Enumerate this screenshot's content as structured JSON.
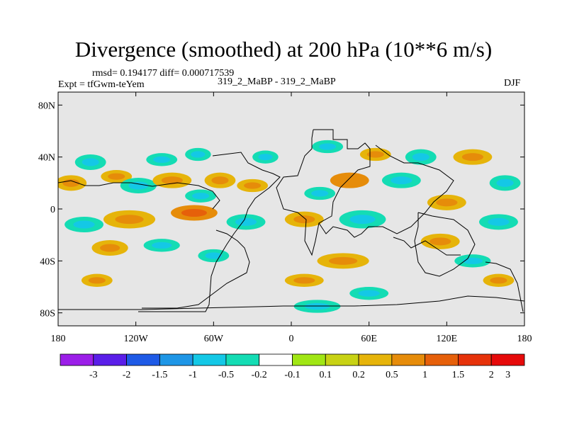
{
  "header": {
    "title": "Divergence (smoothed) at 200 hPa (10**6 m/s)",
    "stats": "rmsd= 0.194177 diff= 0.000717539",
    "experiment": "Expt = tfGwm-teYem",
    "comparison": "319_2_MaBP - 319_2_MaBP",
    "season": "DJF"
  },
  "chart_data": {
    "type": "heatmap",
    "title": "Divergence (smoothed) at 200 hPa (10**6 m/s)",
    "xlabel": "",
    "ylabel": "",
    "xlim": [
      -180,
      180
    ],
    "ylim": [
      -90,
      90
    ],
    "x_ticks": [
      {
        "value": -180,
        "label": "180"
      },
      {
        "value": -120,
        "label": "120W"
      },
      {
        "value": -60,
        "label": "60W"
      },
      {
        "value": 0,
        "label": "0"
      },
      {
        "value": 60,
        "label": "60E"
      },
      {
        "value": 120,
        "label": "120E"
      },
      {
        "value": 180,
        "label": "180"
      }
    ],
    "y_ticks": [
      {
        "value": 80,
        "label": "80N"
      },
      {
        "value": 40,
        "label": "40N"
      },
      {
        "value": 0,
        "label": "0"
      },
      {
        "value": -40,
        "label": "40S"
      },
      {
        "value": -80,
        "label": "80S"
      }
    ],
    "background_color": "#e6e6e6",
    "colorbar": {
      "placement": "bottom",
      "colors": [
        "#9b1ee8",
        "#5a1ee8",
        "#1e5ae6",
        "#1e96e6",
        "#14c8e6",
        "#14dcb4",
        "#ffffff",
        "#a0e614",
        "#c8d214",
        "#e6b40a",
        "#e68c0a",
        "#e6600a",
        "#e6320a",
        "#e60a0a"
      ],
      "labels": [
        "-3",
        "-2",
        "-1.5",
        "-1",
        "-0.5",
        "-0.2",
        "-0.1",
        "0.1",
        "0.2",
        "0.5",
        "1",
        "1.5",
        "2",
        "3"
      ]
    },
    "field_patches": [
      {
        "lon": -170,
        "lat": 20,
        "rx": 12,
        "ry": 6,
        "value": 0.4
      },
      {
        "lon": -155,
        "lat": 36,
        "rx": 12,
        "ry": 6,
        "value": -0.3
      },
      {
        "lon": -135,
        "lat": 25,
        "rx": 12,
        "ry": 5,
        "value": 0.3
      },
      {
        "lon": -118,
        "lat": 18,
        "rx": 14,
        "ry": 6,
        "value": -0.4
      },
      {
        "lon": -100,
        "lat": 38,
        "rx": 12,
        "ry": 5,
        "value": -0.3
      },
      {
        "lon": -92,
        "lat": 22,
        "rx": 15,
        "ry": 6,
        "value": 0.3
      },
      {
        "lon": -72,
        "lat": 42,
        "rx": 10,
        "ry": 5,
        "value": -0.3
      },
      {
        "lon": -70,
        "lat": 10,
        "rx": 12,
        "ry": 5,
        "value": -0.3
      },
      {
        "lon": -55,
        "lat": 22,
        "rx": 12,
        "ry": 6,
        "value": 0.3
      },
      {
        "lon": -75,
        "lat": -3,
        "rx": 18,
        "ry": 6,
        "value": 0.6
      },
      {
        "lon": -125,
        "lat": -8,
        "rx": 20,
        "ry": 7,
        "value": 0.4
      },
      {
        "lon": -160,
        "lat": -12,
        "rx": 15,
        "ry": 6,
        "value": -0.3
      },
      {
        "lon": -140,
        "lat": -30,
        "rx": 14,
        "ry": 6,
        "value": 0.3
      },
      {
        "lon": -100,
        "lat": -28,
        "rx": 14,
        "ry": 5,
        "value": -0.3
      },
      {
        "lon": -60,
        "lat": -36,
        "rx": 12,
        "ry": 5,
        "value": -0.3
      },
      {
        "lon": -30,
        "lat": 18,
        "rx": 12,
        "ry": 5,
        "value": 0.3
      },
      {
        "lon": -20,
        "lat": 40,
        "rx": 10,
        "ry": 5,
        "value": -0.3
      },
      {
        "lon": -35,
        "lat": -10,
        "rx": 15,
        "ry": 6,
        "value": -0.4
      },
      {
        "lon": 10,
        "lat": -8,
        "rx": 15,
        "ry": 6,
        "value": 0.3
      },
      {
        "lon": 22,
        "lat": 12,
        "rx": 12,
        "ry": 5,
        "value": -0.3
      },
      {
        "lon": 28,
        "lat": 48,
        "rx": 12,
        "ry": 5,
        "value": -0.3
      },
      {
        "lon": 45,
        "lat": 22,
        "rx": 15,
        "ry": 6,
        "value": 0.5
      },
      {
        "lon": 65,
        "lat": 42,
        "rx": 12,
        "ry": 5,
        "value": 0.3
      },
      {
        "lon": 85,
        "lat": 22,
        "rx": 15,
        "ry": 6,
        "value": -0.3
      },
      {
        "lon": 55,
        "lat": -8,
        "rx": 18,
        "ry": 7,
        "value": -0.4
      },
      {
        "lon": 100,
        "lat": 40,
        "rx": 12,
        "ry": 6,
        "value": -0.3
      },
      {
        "lon": 120,
        "lat": 5,
        "rx": 15,
        "ry": 6,
        "value": 0.3
      },
      {
        "lon": 140,
        "lat": 40,
        "rx": 15,
        "ry": 6,
        "value": 0.3
      },
      {
        "lon": 165,
        "lat": 20,
        "rx": 12,
        "ry": 6,
        "value": -0.4
      },
      {
        "lon": 160,
        "lat": -10,
        "rx": 15,
        "ry": 6,
        "value": -0.3
      },
      {
        "lon": 115,
        "lat": -25,
        "rx": 15,
        "ry": 6,
        "value": 0.3
      },
      {
        "lon": 140,
        "lat": -40,
        "rx": 14,
        "ry": 5,
        "value": -0.3
      },
      {
        "lon": 40,
        "lat": -40,
        "rx": 20,
        "ry": 6,
        "value": 0.3
      },
      {
        "lon": 10,
        "lat": -55,
        "rx": 15,
        "ry": 5,
        "value": 0.3
      },
      {
        "lon": 20,
        "lat": -75,
        "rx": 18,
        "ry": 5,
        "value": -0.3
      },
      {
        "lon": 60,
        "lat": -65,
        "rx": 15,
        "ry": 5,
        "value": -0.3
      },
      {
        "lon": 160,
        "lat": -55,
        "rx": 12,
        "ry": 5,
        "value": 0.3
      },
      {
        "lon": -150,
        "lat": -55,
        "rx": 12,
        "ry": 5,
        "value": 0.3
      }
    ]
  }
}
